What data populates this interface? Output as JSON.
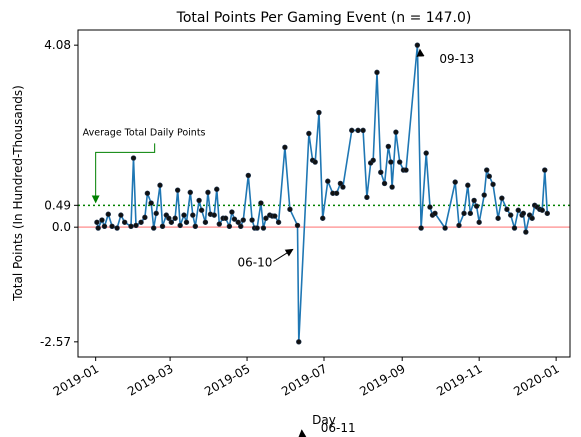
{
  "chart_data": {
    "type": "line",
    "title": "Total Points Per Gaming Event (n = 147.0)",
    "x_label": "Day",
    "y_label": "Total Points (In Hundred-Thousands)",
    "xlim": [
      "2018-12-18",
      "2020-01-12"
    ],
    "xticks": [
      {
        "value": "2019-01-01",
        "label": "2019-01"
      },
      {
        "value": "2019-03-01",
        "label": "2019-03"
      },
      {
        "value": "2019-05-01",
        "label": "2019-05"
      },
      {
        "value": "2019-07-01",
        "label": "2019-07"
      },
      {
        "value": "2019-09-01",
        "label": "2019-09"
      },
      {
        "value": "2019-11-01",
        "label": "2019-11"
      },
      {
        "value": "2020-01-01",
        "label": "2020-01"
      }
    ],
    "ylim": [
      -2.91,
      4.42
    ],
    "yticks": [
      -2.57,
      {
        "value": 0,
        "label": "0.0"
      },
      0.49,
      4.08
    ],
    "reference_lines": [
      {
        "value": 0,
        "color": "#ff9f9f",
        "style": "solid"
      },
      {
        "value": 0.49,
        "color": "#008000",
        "style": "dotted",
        "label": "Average Total Daily Points"
      }
    ],
    "annotations": [
      "06-10",
      "06-11",
      "09-13"
    ],
    "series": [
      {
        "name": "Total Points",
        "color": "#1f77b4",
        "marker_color": "#111111",
        "x": [
          "2019-01-02",
          "2019-01-03",
          "2019-01-06",
          "2019-01-08",
          "2019-01-11",
          "2019-01-14",
          "2019-01-18",
          "2019-01-21",
          "2019-01-24",
          "2019-01-29",
          "2019-01-31",
          "2019-02-02",
          "2019-02-06",
          "2019-02-09",
          "2019-02-11",
          "2019-02-14",
          "2019-02-16",
          "2019-02-18",
          "2019-02-21",
          "2019-02-23",
          "2019-02-26",
          "2019-02-28",
          "2019-03-02",
          "2019-03-05",
          "2019-03-07",
          "2019-03-09",
          "2019-03-12",
          "2019-03-14",
          "2019-03-17",
          "2019-03-19",
          "2019-03-21",
          "2019-03-24",
          "2019-03-26",
          "2019-03-29",
          "2019-03-31",
          "2019-04-02",
          "2019-04-05",
          "2019-04-07",
          "2019-04-09",
          "2019-04-12",
          "2019-04-14",
          "2019-04-17",
          "2019-04-19",
          "2019-04-21",
          "2019-04-24",
          "2019-04-26",
          "2019-04-28",
          "2019-05-02",
          "2019-05-05",
          "2019-05-07",
          "2019-05-09",
          "2019-05-12",
          "2019-05-14",
          "2019-05-16",
          "2019-05-19",
          "2019-05-21",
          "2019-05-23",
          "2019-05-26",
          "2019-05-31",
          "2019-06-04",
          "2019-06-10",
          "2019-06-11",
          "2019-06-19",
          "2019-06-22",
          "2019-06-24",
          "2019-06-27",
          "2019-06-30",
          "2019-07-04",
          "2019-07-08",
          "2019-07-11",
          "2019-07-14",
          "2019-07-16",
          "2019-07-23",
          "2019-07-28",
          "2019-08-01",
          "2019-08-04",
          "2019-08-07",
          "2019-08-09",
          "2019-08-12",
          "2019-08-15",
          "2019-08-18",
          "2019-08-21",
          "2019-08-23",
          "2019-08-24",
          "2019-08-27",
          "2019-08-30",
          "2019-09-02",
          "2019-09-04",
          "2019-09-13",
          "2019-09-16",
          "2019-09-20",
          "2019-09-23",
          "2019-09-25",
          "2019-09-27",
          "2019-10-05",
          "2019-10-13",
          "2019-10-16",
          "2019-10-20",
          "2019-10-23",
          "2019-10-25",
          "2019-10-28",
          "2019-10-30",
          "2019-11-01",
          "2019-11-05",
          "2019-11-07",
          "2019-11-09",
          "2019-11-12",
          "2019-11-16",
          "2019-11-19",
          "2019-11-23",
          "2019-11-26",
          "2019-11-29",
          "2019-12-02",
          "2019-12-05",
          "2019-12-06",
          "2019-12-08",
          "2019-12-11",
          "2019-12-13",
          "2019-12-15",
          "2019-12-17",
          "2019-12-19",
          "2019-12-21",
          "2019-12-23",
          "2019-12-25"
        ],
        "values": [
          0.11,
          -0.02,
          0.16,
          0.02,
          0.29,
          0.02,
          -0.02,
          0.27,
          0.11,
          0.02,
          1.55,
          0.04,
          0.11,
          0.22,
          0.76,
          0.54,
          -0.02,
          0.31,
          0.94,
          0.02,
          0.27,
          0.2,
          0.11,
          0.2,
          0.83,
          0.04,
          0.27,
          0.11,
          0.78,
          0.27,
          0.02,
          0.6,
          0.38,
          0.11,
          0.78,
          0.29,
          0.27,
          0.85,
          0.07,
          0.2,
          0.2,
          0.02,
          0.34,
          0.18,
          0.11,
          0.02,
          0.16,
          1.16,
          0.16,
          -0.02,
          -0.02,
          0.54,
          -0.02,
          0.2,
          0.27,
          0.25,
          0.25,
          0.11,
          1.79,
          0.4,
          0.04,
          -2.57,
          2.1,
          1.5,
          1.46,
          2.57,
          0.2,
          1.03,
          0.76,
          0.76,
          0.98,
          0.9,
          2.17,
          2.17,
          2.17,
          0.67,
          1.44,
          1.5,
          3.47,
          1.23,
          0.98,
          1.81,
          1.46,
          0.9,
          2.13,
          1.46,
          1.28,
          1.28,
          4.08,
          -0.02,
          1.66,
          0.45,
          0.27,
          0.31,
          -0.02,
          1.01,
          0.04,
          0.31,
          0.94,
          0.31,
          0.6,
          0.47,
          0.11,
          0.72,
          1.28,
          1.14,
          0.96,
          0.2,
          0.65,
          0.4,
          0.27,
          -0.02,
          0.38,
          0.27,
          0.31,
          -0.11,
          0.27,
          0.2,
          0.49,
          0.45,
          0.4,
          0.38,
          1.28,
          0.31
        ]
      }
    ]
  }
}
